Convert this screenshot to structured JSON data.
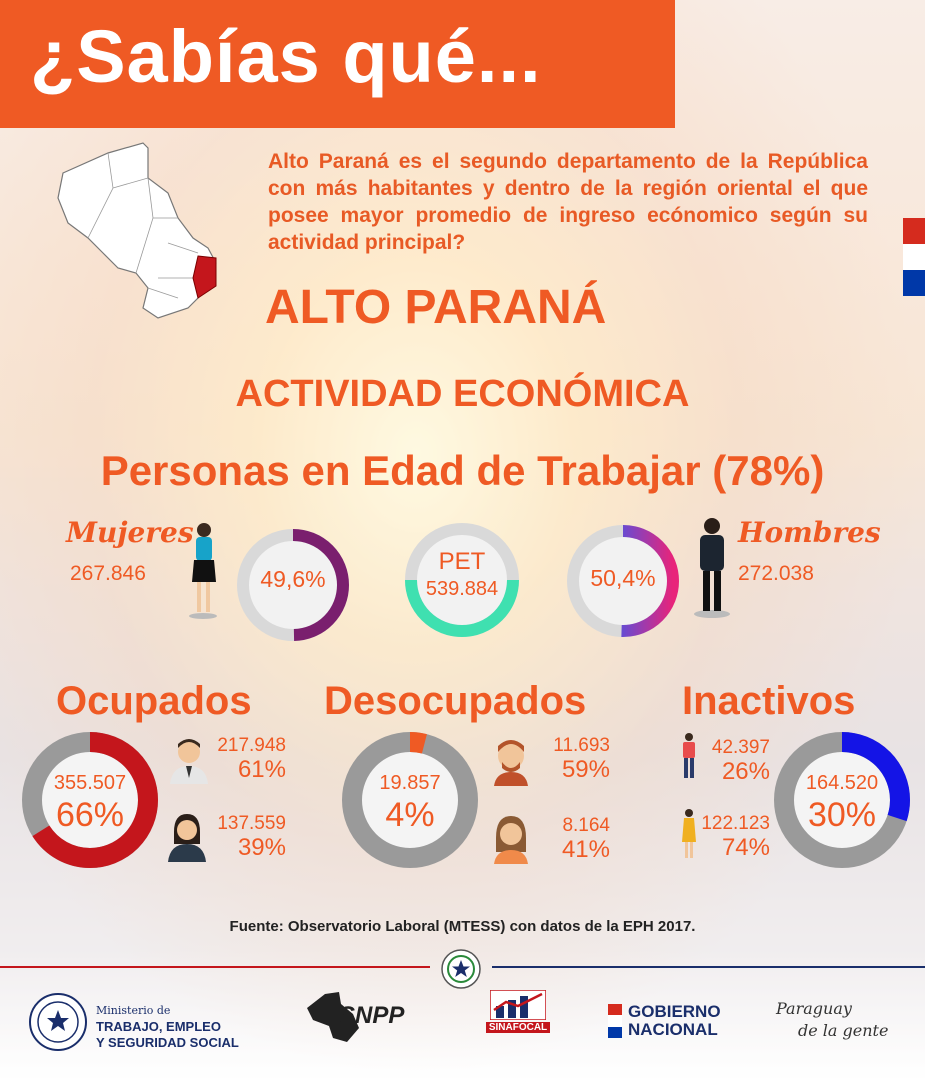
{
  "banner": {
    "title": "¿Sabías qué..."
  },
  "intro": {
    "text": "Alto Paraná es el segundo departamento de la República con más habitantes y dentro de la región oriental el que posee mayor promedio de ingreso ecónomico según su actividad principal?"
  },
  "region": {
    "name": "ALTO PARANÁ"
  },
  "section": {
    "title": "ACTIVIDAD ECONÓMICA"
  },
  "pet": {
    "title": "Personas en Edad de Trabajar (78%)",
    "mujeres": {
      "label": "Mujeres",
      "count": "267.846",
      "pct_label": "49,6%",
      "fraction": 0.496,
      "color": "#7a1f6e"
    },
    "center": {
      "label": "PET",
      "count": "539.884",
      "color": "#3fe0b0"
    },
    "hombres": {
      "label": "Hombres",
      "count": "272.038",
      "pct_label": "50,4%",
      "fraction": 0.504,
      "color": "#2a8ad6"
    }
  },
  "categories": {
    "ocupados": {
      "title": "Ocupados",
      "total": "355.507",
      "pct": "66%",
      "fraction": 0.66,
      "color": "#c4161c",
      "men": {
        "count": "217.948",
        "pct": "61%"
      },
      "women": {
        "count": "137.559",
        "pct": "39%"
      }
    },
    "desocupados": {
      "title": "Desocupados",
      "total": "19.857",
      "pct": "4%",
      "fraction": 0.04,
      "color": "#ef5a24",
      "men": {
        "count": "11.693",
        "pct": "59%"
      },
      "women": {
        "count": "8.164",
        "pct": "41%"
      }
    },
    "inactivos": {
      "title": "Inactivos",
      "total": "164.520",
      "pct": "30%",
      "fraction": 0.3,
      "color": "#1414e6",
      "men": {
        "count": "42.397",
        "pct": "26%"
      },
      "women": {
        "count": "122.123",
        "pct": "74%"
      }
    }
  },
  "source": {
    "text": "Fuente: Observatorio Laboral (MTESS) con datos de la EPH 2017."
  },
  "footer": {
    "mtess_small": "Ministerio de",
    "mtess_line1": "TRABAJO, EMPLEO",
    "mtess_line2": "Y SEGURIDAD SOCIAL",
    "snpp": "SNPP",
    "sinafocal": "SINAFOCAL",
    "gob_line1": "GOBIERNO",
    "gob_line2": "NACIONAL",
    "pdlg_line1": "Paraguay",
    "pdlg_line2": "de la gente"
  },
  "colors": {
    "accent": "#ef5a24",
    "navy": "#1a2e6b",
    "flag_red": "#d52b1e",
    "flag_blue": "#0038a8"
  }
}
